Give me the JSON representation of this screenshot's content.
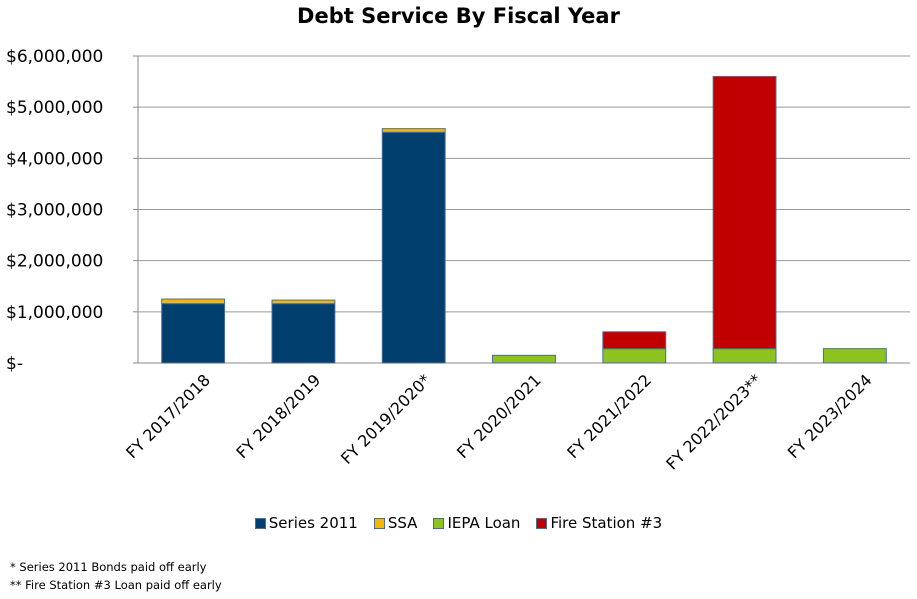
{
  "chart_data": {
    "type": "bar",
    "stacked": true,
    "title": "Debt Service By Fiscal Year",
    "xlabel": "",
    "ylabel": "",
    "ylim": [
      0,
      6000000
    ],
    "y_ticks": [
      {
        "value": 0,
        "label": "$-"
      },
      {
        "value": 1000000,
        "label": "$1,000,000"
      },
      {
        "value": 2000000,
        "label": "$2,000,000"
      },
      {
        "value": 3000000,
        "label": "$3,000,000"
      },
      {
        "value": 4000000,
        "label": "$4,000,000"
      },
      {
        "value": 5000000,
        "label": "$5,000,000"
      },
      {
        "value": 6000000,
        "label": "$6,000,000"
      }
    ],
    "grid": true,
    "legend_position": "bottom",
    "categories": [
      "FY 2017/2018",
      "FY 2018/2019",
      "FY 2019/2020*",
      "FY 2020/2021",
      "FY 2021/2022",
      "FY 2022/2023**",
      "FY 2023/2024"
    ],
    "series": [
      {
        "name": "Series 2011",
        "color": "#003F6E",
        "values": [
          1160000,
          1160000,
          4510000,
          0,
          0,
          0,
          0
        ]
      },
      {
        "name": "SSA",
        "color": "#F5B800",
        "values": [
          90000,
          70000,
          70000,
          0,
          0,
          0,
          0
        ]
      },
      {
        "name": "IEPA Loan",
        "color": "#8DC21F",
        "values": [
          0,
          0,
          0,
          150000,
          280000,
          280000,
          280000
        ]
      },
      {
        "name": "Fire Station #3",
        "color": "#C00000",
        "values": [
          0,
          0,
          0,
          0,
          330000,
          5320000,
          0
        ]
      }
    ]
  },
  "footnotes": [
    "* Series 2011 Bonds paid off early",
    "** Fire Station #3 Loan paid off early"
  ]
}
